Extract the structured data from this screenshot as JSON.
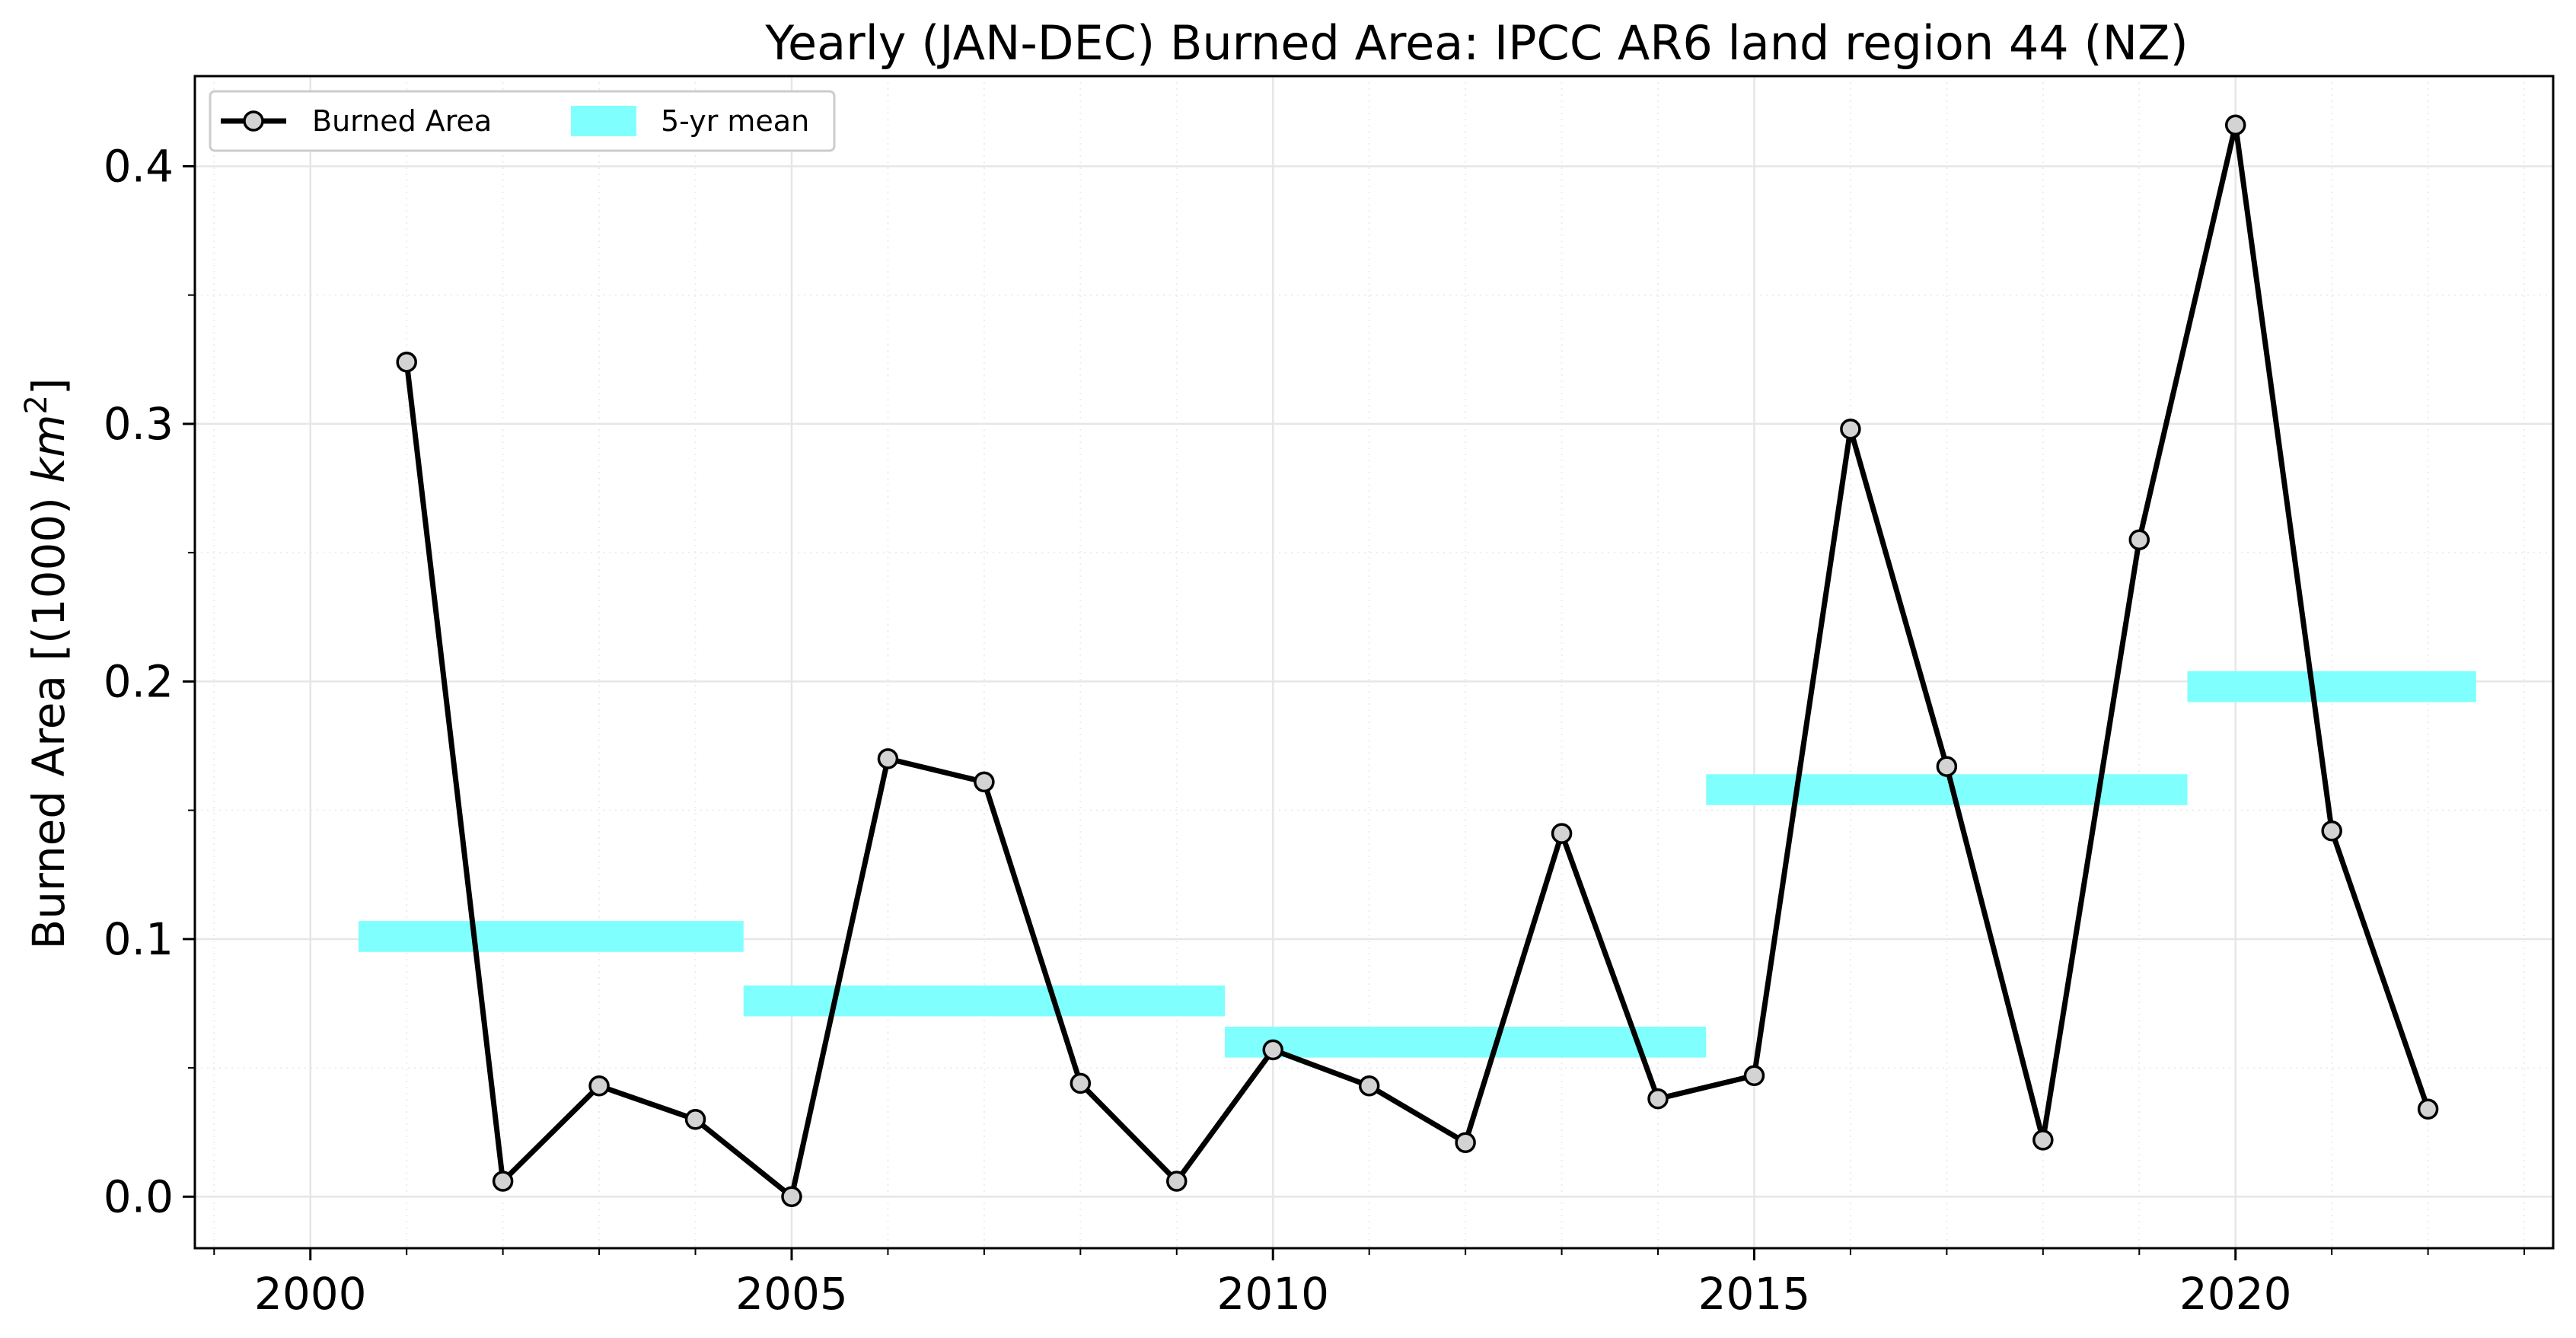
{
  "chart_data": {
    "type": "line",
    "title": "Yearly (JAN-DEC) Burned Area: IPCC AR6 land region 44 (NZ)",
    "xlabel": "",
    "ylabel": "Burned Area [(1000) km²]",
    "xlim": [
      1998.8,
      2023.3
    ],
    "ylim": [
      -0.02,
      0.435
    ],
    "x_ticks": [
      2000,
      2005,
      2010,
      2015,
      2020
    ],
    "x_tick_labels": [
      "2000",
      "2005",
      "2010",
      "2015",
      "2020"
    ],
    "y_ticks": [
      0.0,
      0.1,
      0.2,
      0.3,
      0.4
    ],
    "y_tick_labels": [
      "0.0",
      "0.1",
      "0.2",
      "0.3",
      "0.4"
    ],
    "grid": true,
    "legend": {
      "placement": "top-left",
      "entries": [
        "Burned Area",
        "5-yr mean"
      ]
    },
    "series": [
      {
        "name": "Burned Area",
        "style": "line-with-circle-markers",
        "color": "#000000",
        "marker_fill": "#d3d3d3",
        "x": [
          2001,
          2002,
          2003,
          2004,
          2005,
          2006,
          2007,
          2008,
          2009,
          2010,
          2011,
          2012,
          2013,
          2014,
          2015,
          2016,
          2017,
          2018,
          2019,
          2020,
          2021,
          2022
        ],
        "y": [
          0.324,
          0.006,
          0.043,
          0.03,
          0.0,
          0.17,
          0.161,
          0.044,
          0.006,
          0.057,
          0.043,
          0.021,
          0.141,
          0.038,
          0.047,
          0.298,
          0.167,
          0.022,
          0.255,
          0.416,
          0.142,
          0.034
        ]
      }
    ],
    "five_year_means": {
      "name": "5-yr mean",
      "color": "#80ffff",
      "periods": [
        {
          "start": 2000.5,
          "end": 2004.5,
          "value": 0.101
        },
        {
          "start": 2004.5,
          "end": 2009.5,
          "value": 0.076
        },
        {
          "start": 2009.5,
          "end": 2014.5,
          "value": 0.06
        },
        {
          "start": 2014.5,
          "end": 2019.5,
          "value": 0.158
        },
        {
          "start": 2019.5,
          "end": 2022.5,
          "value": 0.198
        }
      ]
    }
  }
}
